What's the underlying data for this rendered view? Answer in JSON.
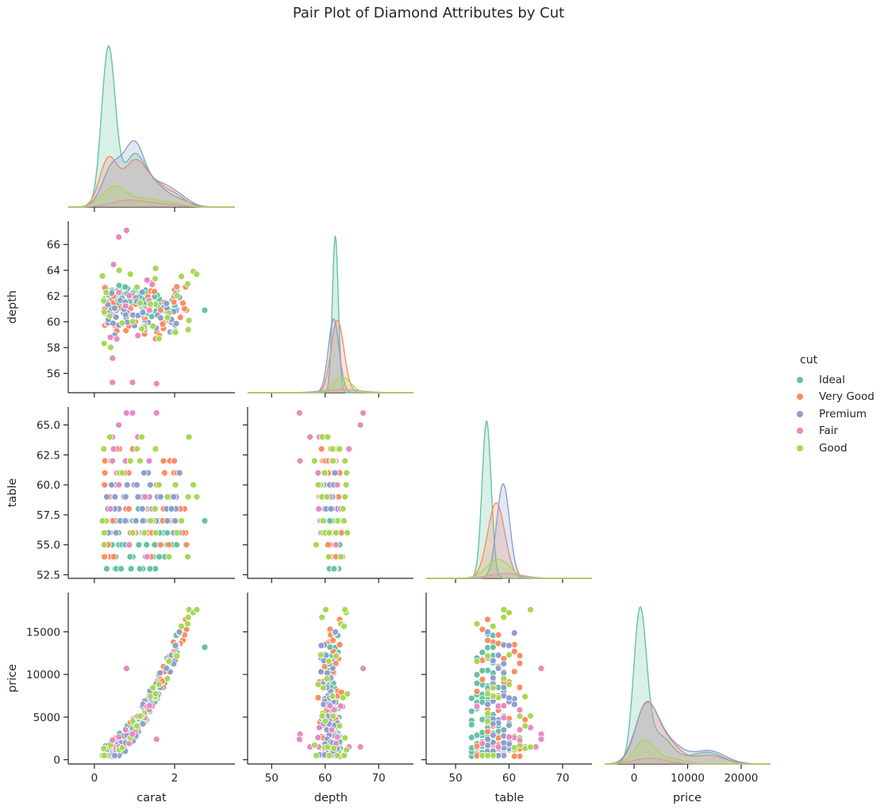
{
  "chart_data": {
    "type": "pairplot",
    "title": "Pair Plot of Diamond Attributes by Cut",
    "variables": [
      "carat",
      "depth",
      "table",
      "price"
    ],
    "hue_variable": "cut",
    "hue_levels": [
      {
        "name": "Ideal",
        "color": "#66c2a5"
      },
      {
        "name": "Very Good",
        "color": "#fc8d62"
      },
      {
        "name": "Premium",
        "color": "#8da0cb"
      },
      {
        "name": "Fair",
        "color": "#e78ac3"
      },
      {
        "name": "Good",
        "color": "#a6d854"
      }
    ],
    "corner": true,
    "diagonal": "kde",
    "off_diagonal": "scatter",
    "axes": {
      "carat": {
        "range": [
          -0.65,
          3.5
        ],
        "ticks": [
          "0",
          "2"
        ],
        "tick_values": [
          0,
          2
        ]
      },
      "depth": {
        "range": [
          54.5,
          67.8
        ],
        "ticks": [
          "56",
          "58",
          "60",
          "62",
          "64",
          "66"
        ],
        "tick_values": [
          56,
          58,
          60,
          62,
          64,
          66
        ],
        "x_range": [
          45.5,
          76.5
        ],
        "x_ticks": [
          "50",
          "60",
          "70"
        ],
        "x_tick_values": [
          50,
          60,
          70
        ]
      },
      "table": {
        "range": [
          52.2,
          66.5
        ],
        "ticks": [
          "52.5",
          "55.0",
          "57.5",
          "60.0",
          "62.5",
          "65.0"
        ],
        "tick_values": [
          52.5,
          55,
          57.5,
          60,
          62.5,
          65
        ],
        "x_range": [
          44.5,
          75.5
        ],
        "x_ticks": [
          "50",
          "60",
          "70"
        ],
        "x_tick_values": [
          50,
          60,
          70
        ]
      },
      "price": {
        "range": [
          -500,
          19600
        ],
        "ticks": [
          "0",
          "5000",
          "10000",
          "15000"
        ],
        "tick_values": [
          0,
          5000,
          10000,
          15000
        ],
        "x_range": [
          -5500,
          25500
        ],
        "x_ticks": [
          "0",
          "10000",
          "20000"
        ],
        "x_tick_values": [
          0,
          10000,
          20000
        ]
      }
    },
    "kde": {
      "carat": {
        "Ideal": {
          "mu": [
            0.35,
            1.0,
            1.55,
            2.05
          ],
          "sigma": [
            0.17,
            0.28,
            0.25,
            0.3
          ],
          "amp": [
            1.0,
            0.33,
            0.1,
            0.05
          ]
        },
        "Very Good": {
          "mu": [
            0.35,
            1.0,
            1.55,
            2.05
          ],
          "sigma": [
            0.22,
            0.28,
            0.28,
            0.25
          ],
          "amp": [
            0.3,
            0.28,
            0.12,
            0.06
          ]
        },
        "Premium": {
          "mu": [
            0.45,
            1.0,
            1.6,
            2.1
          ],
          "sigma": [
            0.25,
            0.25,
            0.3,
            0.28
          ],
          "amp": [
            0.25,
            0.38,
            0.13,
            0.06
          ]
        },
        "Fair": {
          "mu": [
            0.8,
            1.6
          ],
          "sigma": [
            0.4,
            0.45
          ],
          "amp": [
            0.04,
            0.02
          ]
        },
        "Good": {
          "mu": [
            0.5,
            1.3,
            2.0
          ],
          "sigma": [
            0.3,
            0.35,
            0.3
          ],
          "amp": [
            0.13,
            0.05,
            0.02
          ]
        }
      },
      "depth": {
        "Ideal": {
          "mu": [
            61.9
          ],
          "sigma": [
            0.55
          ],
          "amp": [
            1.0
          ]
        },
        "Very Good": {
          "mu": [
            62.3
          ],
          "sigma": [
            1.2
          ],
          "amp": [
            0.46
          ]
        },
        "Premium": {
          "mu": [
            61.6
          ],
          "sigma": [
            1.0
          ],
          "amp": [
            0.47
          ]
        },
        "Fair": {
          "mu": [
            63.0
          ],
          "sigma": [
            3.5
          ],
          "amp": [
            0.02
          ]
        },
        "Good": {
          "mu": [
            63.2
          ],
          "sigma": [
            1.6
          ],
          "amp": [
            0.1
          ]
        }
      },
      "table": {
        "Ideal": {
          "mu": [
            55.8
          ],
          "sigma": [
            0.85
          ],
          "amp": [
            1.0
          ]
        },
        "Very Good": {
          "mu": [
            57.6
          ],
          "sigma": [
            1.6
          ],
          "amp": [
            0.48
          ]
        },
        "Premium": {
          "mu": [
            58.9
          ],
          "sigma": [
            1.2
          ],
          "amp": [
            0.6
          ]
        },
        "Fair": {
          "mu": [
            59.5
          ],
          "sigma": [
            3.0
          ],
          "amp": [
            0.03
          ]
        },
        "Good": {
          "mu": [
            58.0
          ],
          "sigma": [
            2.2
          ],
          "amp": [
            0.12
          ]
        }
      },
      "price": {
        "Ideal": {
          "mu": [
            1100,
            4500,
            13500
          ],
          "sigma": [
            1200,
            2500,
            3000
          ],
          "amp": [
            1.0,
            0.2,
            0.08
          ]
        },
        "Very Good": {
          "mu": [
            2200,
            6000,
            14000
          ],
          "sigma": [
            2000,
            2500,
            2800
          ],
          "amp": [
            0.38,
            0.15,
            0.06
          ]
        },
        "Premium": {
          "mu": [
            2200,
            6000,
            14000
          ],
          "sigma": [
            2100,
            2800,
            3000
          ],
          "amp": [
            0.36,
            0.15,
            0.09
          ]
        },
        "Fair": {
          "mu": [
            3000
          ],
          "sigma": [
            3000
          ],
          "amp": [
            0.04
          ]
        },
        "Good": {
          "mu": [
            1800,
            6000
          ],
          "sigma": [
            1800,
            3000
          ],
          "amp": [
            0.15,
            0.04
          ]
        }
      }
    },
    "cluster_spec": [
      {
        "cut": "Ideal",
        "n": 90,
        "carat": [
          0.25,
          2.1
        ],
        "depth": [
          60.3,
          63.0
        ],
        "table": [
          53,
          58
        ],
        "price": [
          400,
          18500
        ]
      },
      {
        "cut": "Very Good",
        "n": 55,
        "carat": [
          0.25,
          2.3
        ],
        "depth": [
          58.0,
          63.5
        ],
        "table": [
          54,
          63
        ],
        "price": [
          400,
          18700
        ]
      },
      {
        "cut": "Premium",
        "n": 60,
        "carat": [
          0.3,
          2.2
        ],
        "depth": [
          58.5,
          62.8
        ],
        "table": [
          56,
          61
        ],
        "price": [
          500,
          18600
        ]
      },
      {
        "cut": "Fair",
        "n": 14,
        "carat": [
          0.4,
          1.6
        ],
        "depth": [
          55.2,
          67.1
        ],
        "table": [
          53,
          66
        ],
        "price": [
          1500,
          10700
        ]
      },
      {
        "cut": "Good",
        "n": 30,
        "carat": [
          0.2,
          2.6
        ],
        "depth": [
          57.8,
          65.0
        ],
        "table": [
          54,
          65
        ],
        "price": [
          500,
          17600
        ]
      }
    ],
    "outliers": [
      {
        "cut": "Ideal",
        "carat": 2.75,
        "depth": 60.9,
        "table": 57,
        "price": 13200
      },
      {
        "cut": "Good",
        "carat": 2.55,
        "depth": 63.7,
        "table": 59,
        "price": 17600
      },
      {
        "cut": "Fair",
        "carat": 0.8,
        "depth": 67.1,
        "table": 66,
        "price": 10700
      },
      {
        "cut": "Fair",
        "carat": 0.95,
        "depth": 55.3,
        "table": 66,
        "price": 3000
      },
      {
        "cut": "Fair",
        "carat": 0.45,
        "depth": 55.3,
        "table": 62,
        "price": 2300
      },
      {
        "cut": "Fair",
        "carat": 1.55,
        "depth": 55.2,
        "table": 66,
        "price": 2400
      }
    ]
  }
}
